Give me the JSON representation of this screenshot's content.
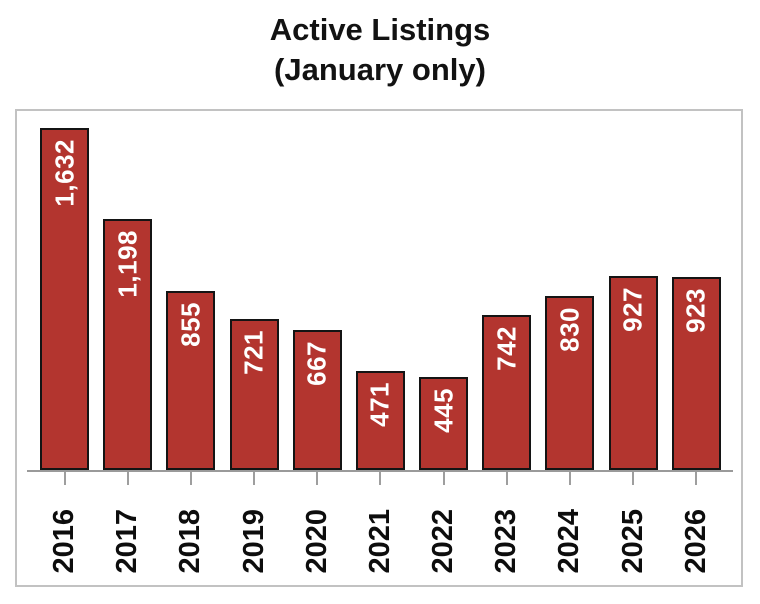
{
  "title": {
    "line1": "Active Listings",
    "line2": "(January only)"
  },
  "chart_data": {
    "type": "bar",
    "title": "Active Listings (January only)",
    "categories": [
      "2016",
      "2017",
      "2018",
      "2019",
      "2020",
      "2021",
      "2022",
      "2023",
      "2024",
      "2025",
      "2026"
    ],
    "values": [
      1632,
      1198,
      855,
      721,
      667,
      471,
      445,
      742,
      830,
      927,
      923
    ],
    "value_labels": [
      "1,632",
      "1,198",
      "855",
      "721",
      "667",
      "471",
      "445",
      "742",
      "830",
      "927",
      "923"
    ],
    "xlabel": "",
    "ylabel": "",
    "ylim": [
      0,
      1725
    ],
    "grid": false,
    "legend": "none",
    "colors": {
      "bar_fill": "#b3352f",
      "bar_border": "#141414",
      "value_label": "#ffffff",
      "axis": "#9a9a9a",
      "tick": "#9e9e9e",
      "frame": "#c2c2c2",
      "title_text": "#121212",
      "category_text": "#0d0d0d",
      "background": "#ffffff"
    }
  }
}
